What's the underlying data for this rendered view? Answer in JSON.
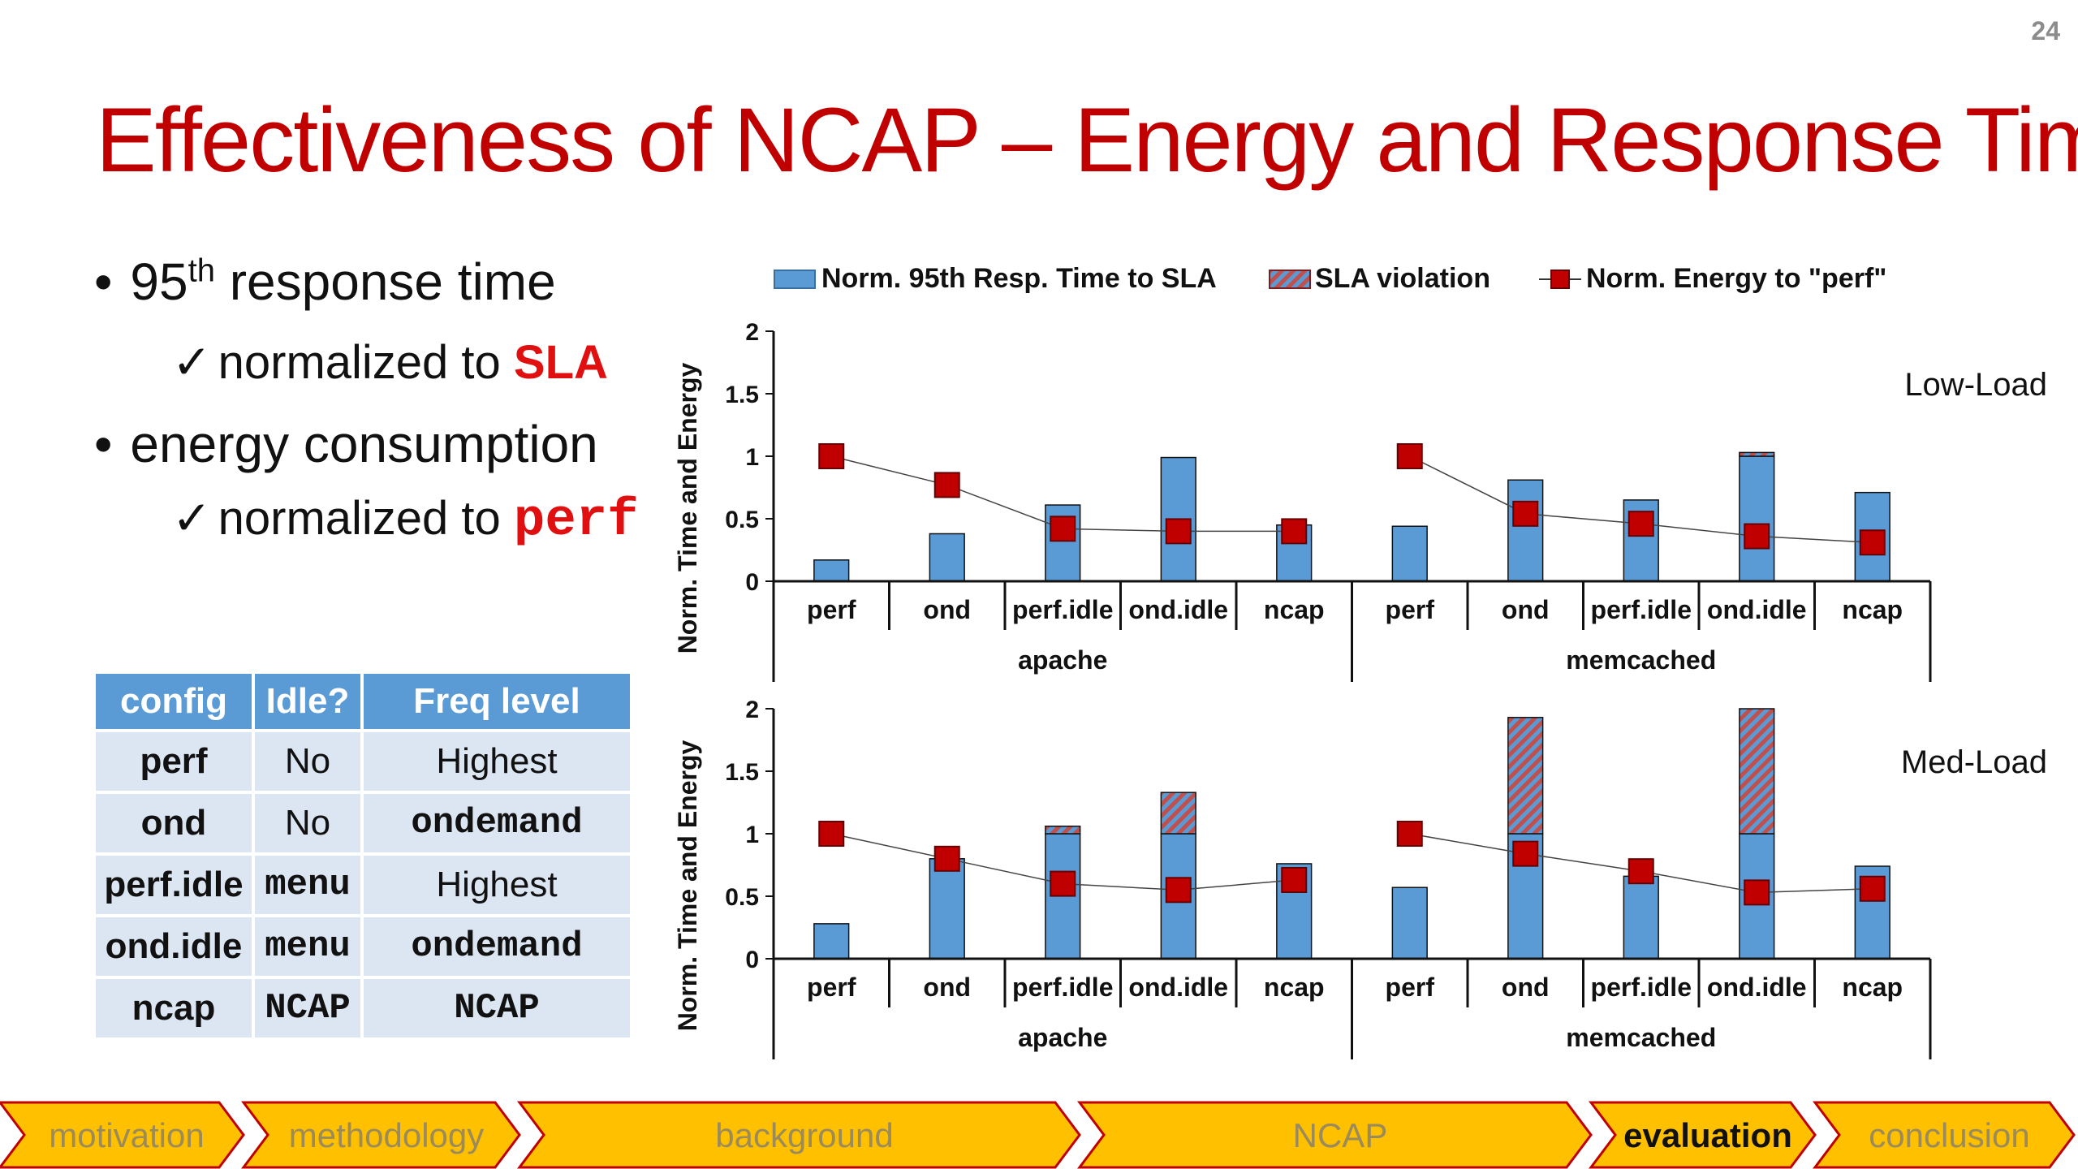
{
  "slide_number": "24",
  "title": "Effectiveness of NCAP – Energy and Response Time",
  "bullets": [
    {
      "text": "95",
      "sup": "th",
      "rest": " response time",
      "sub_prefix": "normalized to ",
      "sub_highlight": "SLA"
    },
    {
      "text": "energy consumption",
      "sub_prefix": "normalized to ",
      "sub_highlight": "perf"
    }
  ],
  "table": {
    "headers": [
      "config",
      "Idle?",
      "Freq level"
    ],
    "rows": [
      [
        "perf",
        "No",
        "Highest"
      ],
      [
        "ond",
        "No",
        "ondemand"
      ],
      [
        "perf.idle",
        "menu",
        "Highest"
      ],
      [
        "ond.idle",
        "menu",
        "ondemand"
      ],
      [
        "ncap",
        "NCAP",
        "NCAP"
      ]
    ]
  },
  "legend": {
    "bar": "Norm. 95th Resp. Time to SLA",
    "violation": "SLA violation",
    "energy": "Norm. Energy to \"perf\""
  },
  "colors": {
    "bar": "#5b9bd5",
    "violation": "#c0504d",
    "marker": "#c00000",
    "title": "#c00000",
    "nav_fill": "#ffc000"
  },
  "chart_data": [
    {
      "type": "bar",
      "label": "Low-Load",
      "ylabel": "Norm. Time and Energy",
      "ylim": [
        0,
        2
      ],
      "yticks": [
        "0",
        "0.5",
        "1",
        "1.5",
        "2"
      ],
      "groups": [
        "apache",
        "memcached"
      ],
      "categories": [
        "perf",
        "ond",
        "perf.idle",
        "ond.idle",
        "ncap",
        "perf",
        "ond",
        "perf.idle",
        "ond.idle",
        "ncap"
      ],
      "series": [
        {
          "name": "Norm. 95th Resp. Time to SLA",
          "values": [
            0.17,
            0.38,
            0.61,
            0.99,
            0.45,
            0.44,
            0.81,
            0.65,
            1.0,
            0.71
          ]
        },
        {
          "name": "SLA violation",
          "values": [
            0,
            0,
            0,
            0,
            0,
            0,
            0,
            0,
            0.03,
            0
          ]
        },
        {
          "name": "Norm. Energy to \"perf\"",
          "values": [
            1.0,
            0.77,
            0.42,
            0.4,
            0.4,
            1.0,
            0.54,
            0.46,
            0.36,
            0.31
          ]
        }
      ]
    },
    {
      "type": "bar",
      "label": "Med-Load",
      "ylabel": "Norm. Time and Energy",
      "ylim": [
        0,
        2
      ],
      "yticks": [
        "0",
        "0.5",
        "1",
        "1.5",
        "2"
      ],
      "groups": [
        "apache",
        "memcached"
      ],
      "categories": [
        "perf",
        "ond",
        "perf.idle",
        "ond.idle",
        "ncap",
        "perf",
        "ond",
        "perf.idle",
        "ond.idle",
        "ncap"
      ],
      "series": [
        {
          "name": "Norm. 95th Resp. Time to SLA",
          "values": [
            0.28,
            0.8,
            1.0,
            1.0,
            0.76,
            0.57,
            1.0,
            0.66,
            1.0,
            0.74
          ]
        },
        {
          "name": "SLA violation",
          "values": [
            0,
            0,
            0.06,
            0.33,
            0,
            0,
            0.93,
            0,
            1.0,
            0
          ]
        },
        {
          "name": "Norm. Energy to \"perf\"",
          "values": [
            1.0,
            0.8,
            0.6,
            0.55,
            0.63,
            1.0,
            0.84,
            0.7,
            0.53,
            0.56
          ]
        }
      ]
    }
  ],
  "nav": {
    "items": [
      "motivation",
      "methodology",
      "background",
      "NCAP",
      "evaluation",
      "conclusion"
    ],
    "active": "evaluation"
  }
}
